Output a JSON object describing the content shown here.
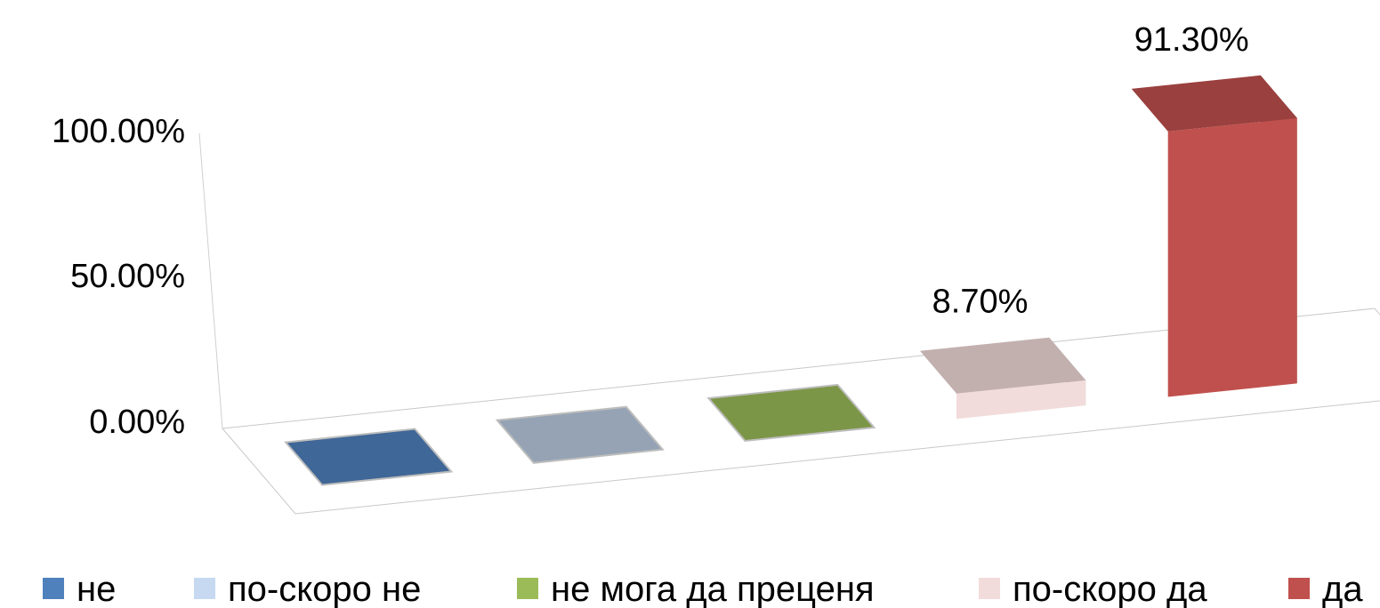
{
  "chart_data": {
    "type": "bar",
    "categories": [
      "не",
      "по-скоро не",
      "не мога да преценя",
      "по-скоро да",
      "да"
    ],
    "values": [
      0.0,
      0.0,
      0.0,
      8.7,
      91.3
    ],
    "value_labels": [
      "",
      "",
      "",
      "8.70%",
      "91.30%"
    ],
    "colors": [
      "#4F81BD",
      "#C6D9F1",
      "#9BBB59",
      "#F2DCDB",
      "#C0504D"
    ],
    "y_ticks": [
      "0.00%",
      "50.00%",
      "100.00%"
    ],
    "ylim": [
      0,
      100
    ],
    "legend_position": "bottom",
    "grid": false,
    "style": "3d"
  }
}
